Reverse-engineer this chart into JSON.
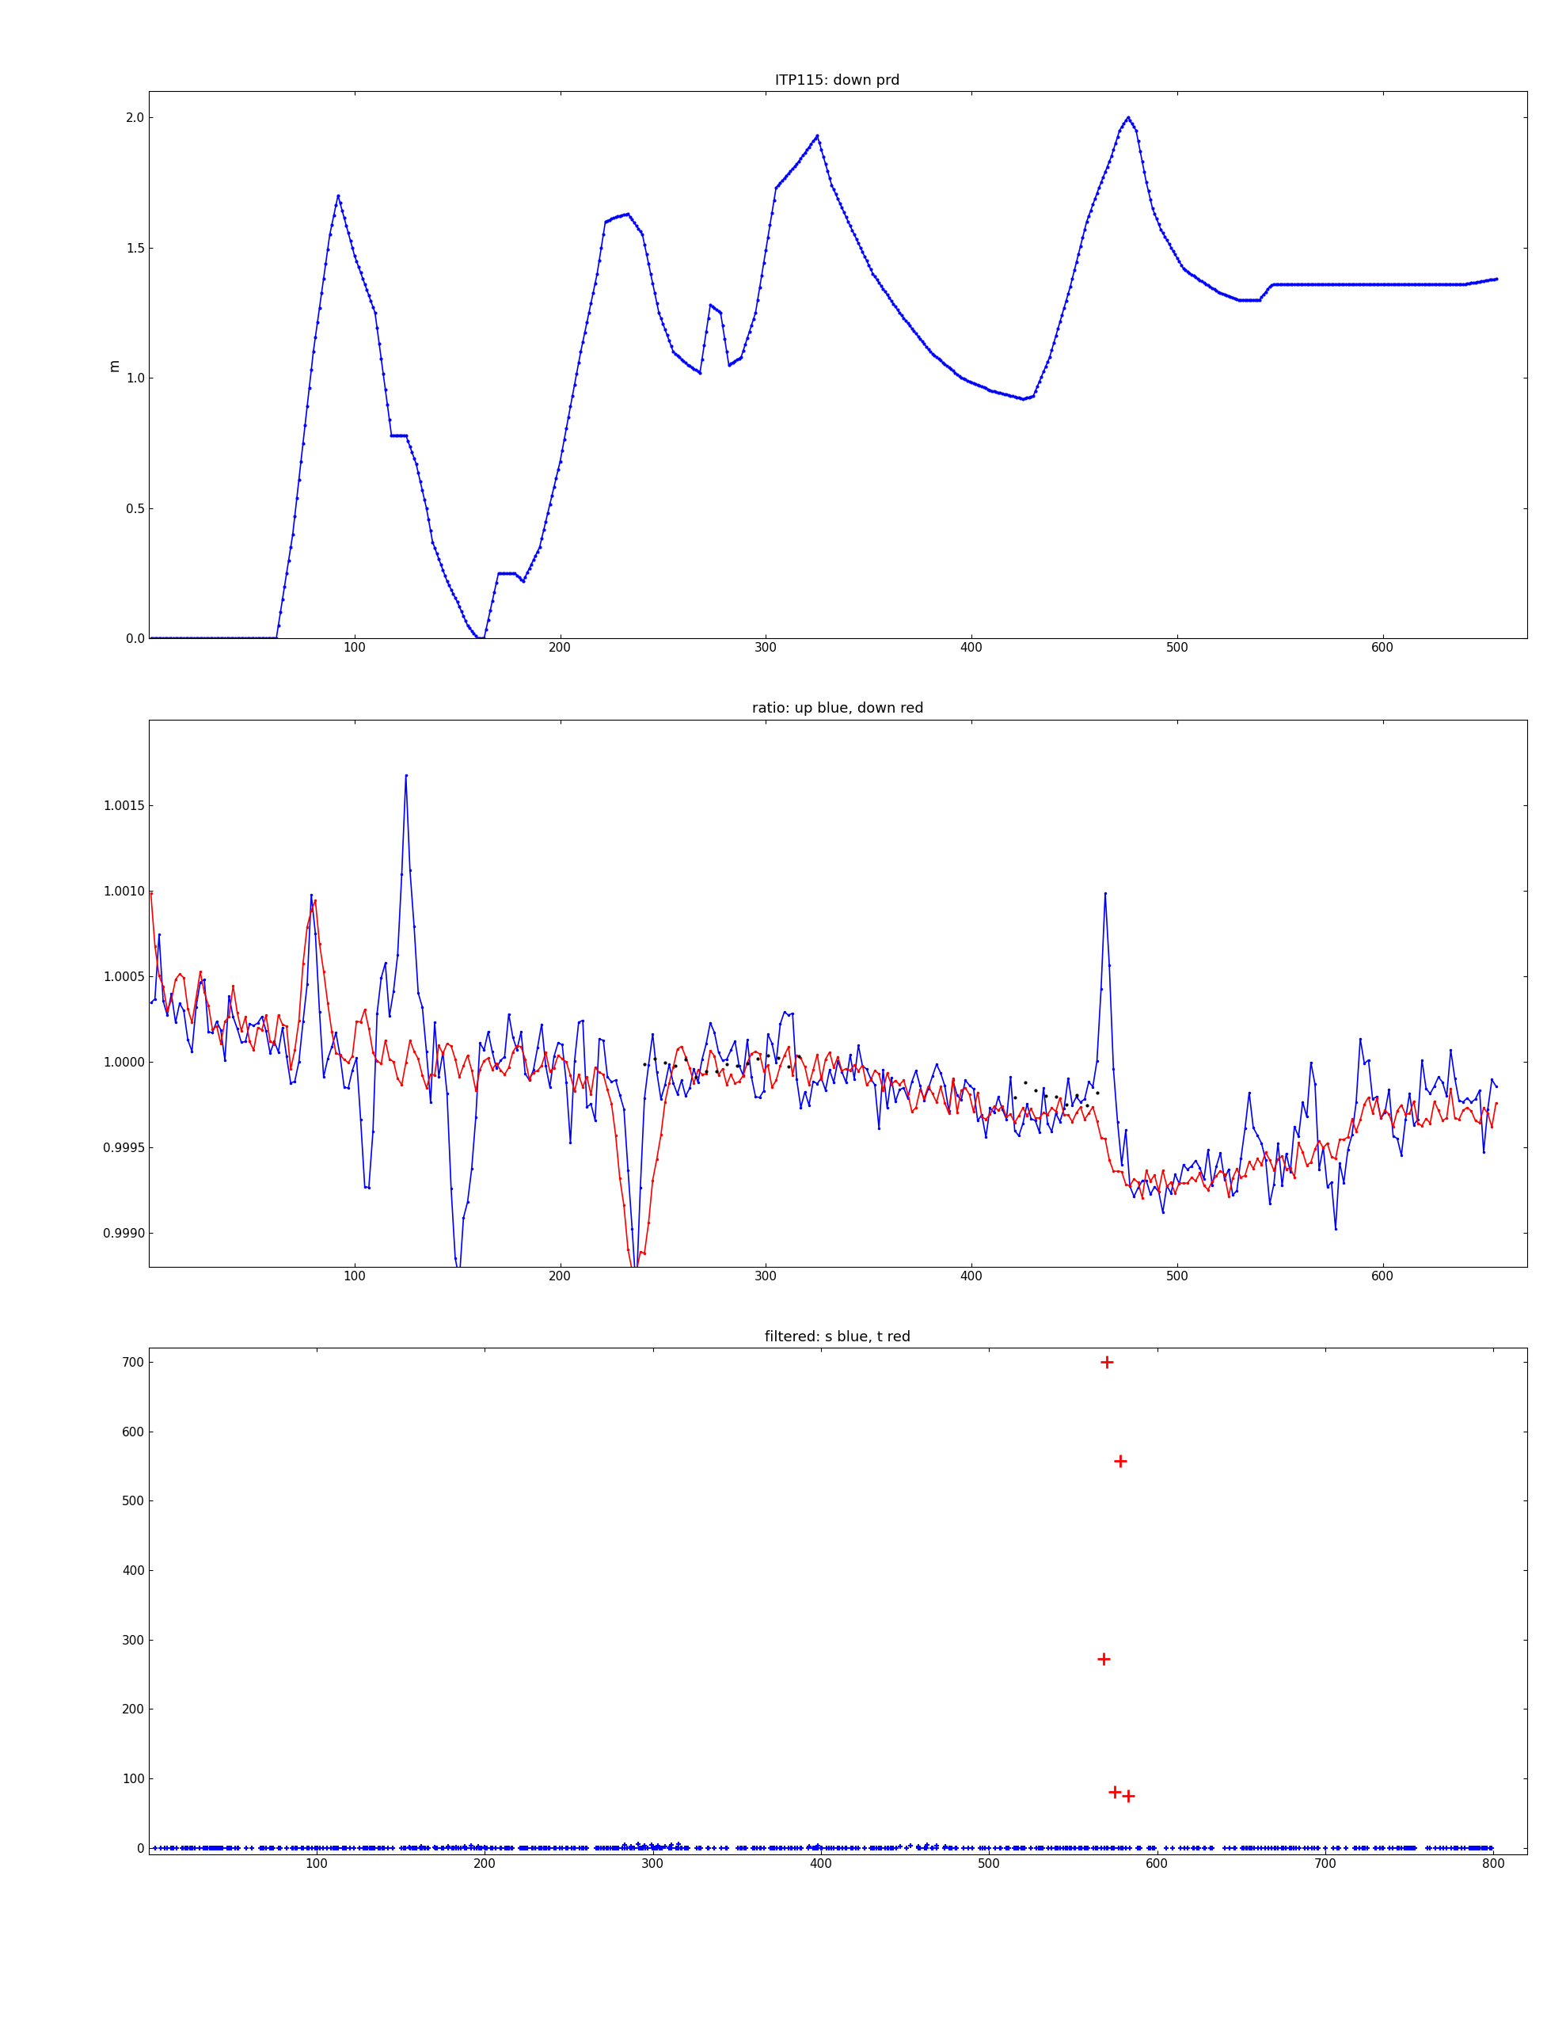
{
  "title1": "ITP115: down prd",
  "title2": "ratio: up blue, down red",
  "title3": "filtered: s blue, t red",
  "ylabel1": "m",
  "fig_width": 19.78,
  "fig_height": 25.6,
  "background_color": "#ffffff",
  "plot1_xlim": [
    0,
    670
  ],
  "plot1_ylim": [
    0,
    2.1
  ],
  "plot1_yticks": [
    0,
    0.5,
    1.0,
    1.5,
    2.0
  ],
  "plot1_xticks": [
    100,
    200,
    300,
    400,
    500,
    600
  ],
  "plot2_xlim": [
    0,
    670
  ],
  "plot2_ylim": [
    0.9988,
    1.002
  ],
  "plot2_yticks": [
    0.999,
    0.9995,
    1.0,
    1.0005,
    1.001,
    1.0015
  ],
  "plot2_xticks": [
    100,
    200,
    300,
    400,
    500,
    600
  ],
  "plot3_xlim": [
    0,
    820
  ],
  "plot3_ylim": [
    -10,
    720
  ],
  "plot3_yticks": [
    0,
    100,
    200,
    300,
    400,
    500,
    600,
    700
  ],
  "plot3_xticks": [
    100,
    200,
    300,
    400,
    500,
    600,
    700,
    800
  ],
  "blue_color": "#0000ff",
  "red_color": "#ff0000",
  "black_color": "#000000",
  "line_width": 1.2,
  "marker_size": 4,
  "plus_marker_size": 12
}
